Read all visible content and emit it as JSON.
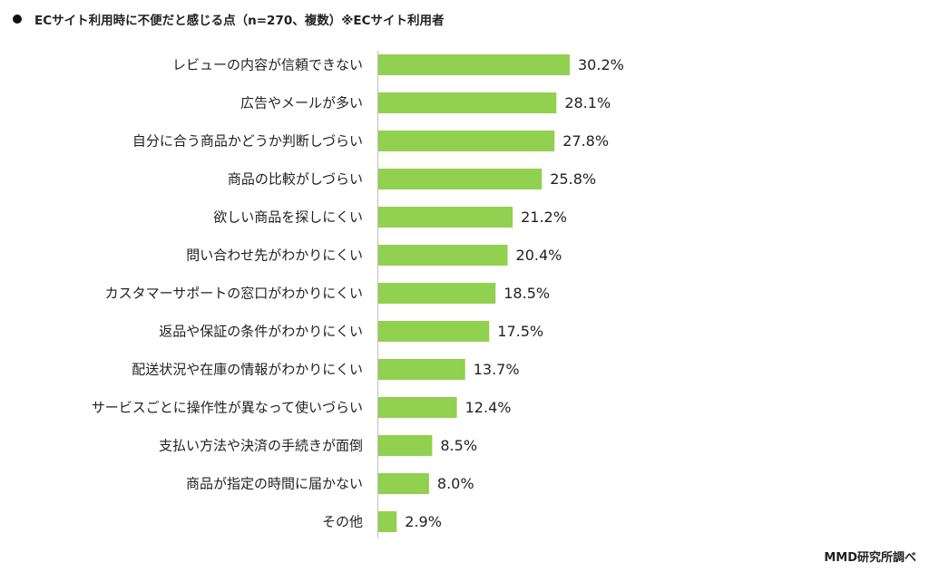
{
  "title": "ECサイト利用時に不便だと感じる点（n=270、複数）※ECサイト利用者",
  "source": "MMD研究所調べ",
  "chart_data": {
    "type": "bar",
    "orientation": "horizontal",
    "title": "ECサイト利用時に不便だと感じる点（n=270、複数）※ECサイト利用者",
    "xlabel": "",
    "ylabel": "",
    "unit": "%",
    "bar_color": "#92d050",
    "grid": false,
    "legend": "none",
    "xlim": [
      0,
      30.2
    ],
    "categories": [
      "レビューの内容が信頼できない",
      "広告やメールが多い",
      "自分に合う商品かどうか判断しづらい",
      "商品の比較がしづらい",
      "欲しい商品を探しにくい",
      "問い合わせ先がわかりにくい",
      "カスタマーサポートの窓口がわかりにくい",
      "返品や保証の条件がわかりにくい",
      "配送状況や在庫の情報がわかりにくい",
      "サービスごとに操作性が異なって使いづらい",
      "支払い方法や決済の手続きが面倒",
      "商品が指定の時間に届かない",
      "その他"
    ],
    "values": [
      30.2,
      28.1,
      27.8,
      25.8,
      21.2,
      20.4,
      18.5,
      17.5,
      13.7,
      12.4,
      8.5,
      8.0,
      2.9
    ],
    "value_labels": [
      "30.2%",
      "28.1%",
      "27.8%",
      "25.8%",
      "21.2%",
      "20.4%",
      "18.5%",
      "17.5%",
      "13.7%",
      "12.4%",
      "8.5%",
      "8.0%",
      "2.9%"
    ]
  }
}
